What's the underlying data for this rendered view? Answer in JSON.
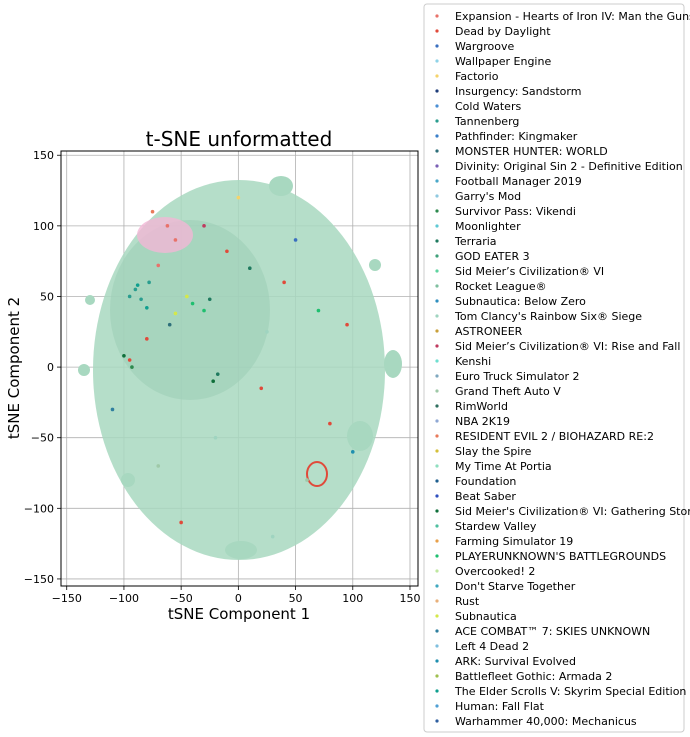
{
  "chart_data": {
    "type": "scatter",
    "title": "t-SNE unformatted",
    "xlabel": "tSNE Component 1",
    "ylabel": "tSNE Component 2",
    "xlim": [
      -155,
      157
    ],
    "ylim": [
      -155,
      153
    ],
    "xticks": [
      -150,
      -100,
      -50,
      0,
      50,
      100,
      150
    ],
    "xtick_labels": [
      "−150",
      "−100",
      "−50",
      "0",
      "50",
      "100",
      "150"
    ],
    "yticks": [
      -150,
      -100,
      -50,
      0,
      50,
      100,
      150
    ],
    "ytick_labels": [
      "−150",
      "−100",
      "−50",
      "0",
      "50",
      "100",
      "150"
    ],
    "grid": true,
    "legend_position": "outside-right",
    "series": [
      {
        "name": "Expansion - Hearts of Iron IV: Man the Guns",
        "color": "#e8726a"
      },
      {
        "name": "Dead by Daylight",
        "color": "#e04a3a"
      },
      {
        "name": "Wargroove",
        "color": "#3a6fbf"
      },
      {
        "name": "Wallpaper Engine",
        "color": "#8fd3e8"
      },
      {
        "name": "Factorio",
        "color": "#f5d36b"
      },
      {
        "name": "Insurgency: Sandstorm",
        "color": "#1f3d7a"
      },
      {
        "name": "Cold Waters",
        "color": "#4a8fd4"
      },
      {
        "name": "Tannenberg",
        "color": "#2a9d8f"
      },
      {
        "name": "Pathfinder: Kingmaker",
        "color": "#3a7fc9"
      },
      {
        "name": "MONSTER HUNTER: WORLD",
        "color": "#2e6f7a"
      },
      {
        "name": "Divinity: Original Sin 2 - Definitive Edition",
        "color": "#7a5fb5"
      },
      {
        "name": "Football Manager 2019",
        "color": "#4aa8c9"
      },
      {
        "name": "Garry's Mod",
        "color": "#8fc9e0"
      },
      {
        "name": "Survivor Pass: Vikendi",
        "color": "#2d8a4e"
      },
      {
        "name": "Moonlighter",
        "color": "#5fc9d4"
      },
      {
        "name": "Terraria",
        "color": "#1f7a5f"
      },
      {
        "name": "GOD EATER 3",
        "color": "#3fa07a"
      },
      {
        "name": "Sid Meier’s Civilization® VI",
        "color": "#5fd4a0"
      },
      {
        "name": "Rocket League®",
        "color": "#7fbf9f"
      },
      {
        "name": "Subnautica: Below Zero",
        "color": "#2f8fbf"
      },
      {
        "name": "Tom Clancy's Rainbow Six® Siege",
        "color": "#9fd4c0"
      },
      {
        "name": "ASTRONEER",
        "color": "#c9a03a"
      },
      {
        "name": "Sid Meier’s Civilization® VI: Rise and Fall",
        "color": "#bf3a5f"
      },
      {
        "name": "Kenshi",
        "color": "#6fdfd0"
      },
      {
        "name": "Euro Truck Simulator 2",
        "color": "#7fa8bf"
      },
      {
        "name": "Grand Theft Auto V",
        "color": "#9fc9a8"
      },
      {
        "name": "RimWorld",
        "color": "#2f6f5f"
      },
      {
        "name": "NBA 2K19",
        "color": "#8fa8d4"
      },
      {
        "name": "RESIDENT EVIL 2 / BIOHAZARD RE:2",
        "color": "#e87a5a"
      },
      {
        "name": "Slay the Spire",
        "color": "#d4c03a"
      },
      {
        "name": "My Time At Portia",
        "color": "#8fdfbf"
      },
      {
        "name": "Foundation",
        "color": "#1f5f8f"
      },
      {
        "name": "Beat Saber",
        "color": "#2f4fbf"
      },
      {
        "name": "Sid Meier's Civilization® VI: Gathering Storm",
        "color": "#0f6f3a"
      },
      {
        "name": "Stardew Valley",
        "color": "#4fbf9f"
      },
      {
        "name": "Farming Simulator 19",
        "color": "#e8a04a"
      },
      {
        "name": "PLAYERUNKNOWN'S BATTLEGROUNDS",
        "color": "#1fbf6f"
      },
      {
        "name": "Overcooked! 2",
        "color": "#bfe8a0"
      },
      {
        "name": "Don't Starve Together",
        "color": "#3fa8bf"
      },
      {
        "name": "Rust",
        "color": "#e8b07a"
      },
      {
        "name": "Subnautica",
        "color": "#d4e84a"
      },
      {
        "name": "ACE COMBAT™ 7: SKIES UNKNOWN",
        "color": "#2f7f9f"
      },
      {
        "name": "Left 4 Dead 2",
        "color": "#7fbfdf"
      },
      {
        "name": "ARK: Survival Evolved",
        "color": "#1f8faf"
      },
      {
        "name": "Battlefleet Gothic: Armada 2",
        "color": "#9fbf4f"
      },
      {
        "name": "The Elder Scrolls V: Skyrim Special Edition",
        "color": "#0f9f8f"
      },
      {
        "name": "Human: Fall Flat",
        "color": "#4f9fd4"
      },
      {
        "name": "Warhammer 40,000: Mechanicus",
        "color": "#2f5fa0"
      }
    ],
    "points": [
      {
        "x": -62,
        "y": 100,
        "series": 0
      },
      {
        "x": -70,
        "y": 72,
        "series": 0
      },
      {
        "x": -55,
        "y": 90,
        "series": 0
      },
      {
        "x": -10,
        "y": 82,
        "series": 1
      },
      {
        "x": -80,
        "y": 20,
        "series": 1
      },
      {
        "x": 40,
        "y": 60,
        "series": 1
      },
      {
        "x": 80,
        "y": -40,
        "series": 1
      },
      {
        "x": -50,
        "y": -110,
        "series": 1
      },
      {
        "x": -95,
        "y": 5,
        "series": 1
      },
      {
        "x": 20,
        "y": -15,
        "series": 1
      },
      {
        "x": 95,
        "y": 30,
        "series": 1
      },
      {
        "x": -90,
        "y": 55,
        "series": 7
      },
      {
        "x": -85,
        "y": 48,
        "series": 7
      },
      {
        "x": -78,
        "y": 60,
        "series": 7
      },
      {
        "x": -95,
        "y": 50,
        "series": 7
      },
      {
        "x": -80,
        "y": 42,
        "series": 45
      },
      {
        "x": -88,
        "y": 58,
        "series": 45
      },
      {
        "x": -40,
        "y": 45,
        "series": 36
      },
      {
        "x": -30,
        "y": 40,
        "series": 36
      },
      {
        "x": -45,
        "y": 50,
        "series": 40
      },
      {
        "x": -55,
        "y": 38,
        "series": 40
      },
      {
        "x": -25,
        "y": 48,
        "series": 15
      },
      {
        "x": -18,
        "y": -5,
        "series": 15
      },
      {
        "x": -22,
        "y": -10,
        "series": 33
      },
      {
        "x": -100,
        "y": 8,
        "series": 33
      },
      {
        "x": -93,
        "y": 0,
        "series": 13
      },
      {
        "x": 10,
        "y": 70,
        "series": 15
      },
      {
        "x": 50,
        "y": 90,
        "series": 2
      },
      {
        "x": -60,
        "y": 30,
        "series": 9
      },
      {
        "x": 25,
        "y": 25,
        "series": 20
      },
      {
        "x": -20,
        "y": -50,
        "series": 20
      },
      {
        "x": 60,
        "y": -80,
        "series": 25
      },
      {
        "x": -70,
        "y": -70,
        "series": 25
      },
      {
        "x": 0,
        "y": 120,
        "series": 4
      },
      {
        "x": 100,
        "y": -60,
        "series": 43
      },
      {
        "x": -110,
        "y": -30,
        "series": 41
      },
      {
        "x": 70,
        "y": 40,
        "series": 36
      },
      {
        "x": 30,
        "y": -120,
        "series": 20
      },
      {
        "x": -30,
        "y": 100,
        "series": 22
      },
      {
        "x": -75,
        "y": 110,
        "series": 28
      }
    ]
  }
}
